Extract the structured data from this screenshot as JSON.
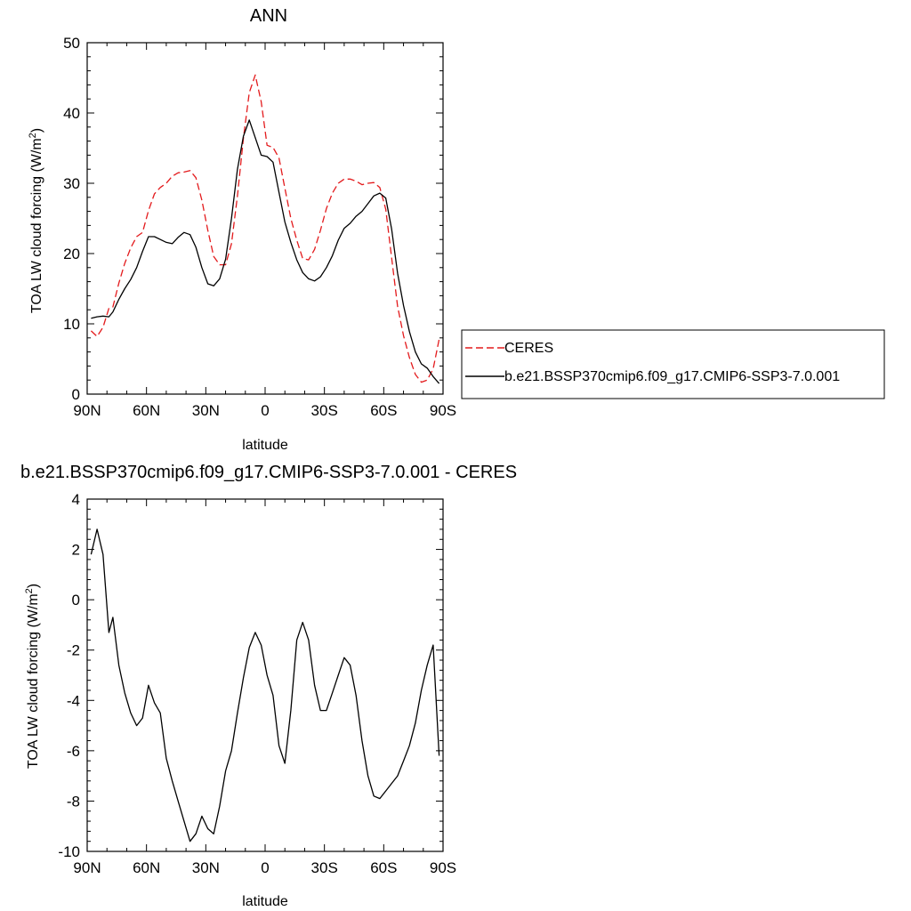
{
  "chart_data": [
    {
      "type": "line",
      "title": "ANN",
      "xlabel": "latitude",
      "ylabel": "TOA LW cloud forcing (W/m²)",
      "ylabel_main": "TOA LW cloud forcing (W/m",
      "ylabel_sup": "2",
      "ylabel_end": ")",
      "xlim": [
        90,
        -90
      ],
      "ylim": [
        0,
        50
      ],
      "grid": false,
      "legend_position": "right",
      "x_ticks": [
        {
          "value": 90,
          "label": "90N"
        },
        {
          "value": 60,
          "label": "60N"
        },
        {
          "value": 30,
          "label": "30N"
        },
        {
          "value": 0,
          "label": "0"
        },
        {
          "value": -30,
          "label": "30S"
        },
        {
          "value": -60,
          "label": "60S"
        },
        {
          "value": -90,
          "label": "90S"
        }
      ],
      "y_ticks": [
        {
          "value": 0,
          "label": "0"
        },
        {
          "value": 10,
          "label": "10"
        },
        {
          "value": 20,
          "label": "20"
        },
        {
          "value": 30,
          "label": "30"
        },
        {
          "value": 40,
          "label": "40"
        },
        {
          "value": 50,
          "label": "50"
        }
      ],
      "x": [
        88,
        85,
        82,
        79,
        77,
        74,
        71,
        68,
        65,
        62,
        59,
        56,
        53,
        50,
        47,
        44,
        41,
        38,
        35,
        32,
        29,
        26,
        23,
        20,
        17,
        14,
        11,
        8,
        5,
        2,
        -1,
        -4,
        -7,
        -10,
        -13,
        -16,
        -19,
        -22,
        -25,
        -28,
        -31,
        -34,
        -37,
        -40,
        -43,
        -46,
        -49,
        -52,
        -55,
        -58,
        -61,
        -64,
        -67,
        -70,
        -73,
        -76,
        -79,
        -82,
        -85,
        -88
      ],
      "series": [
        {
          "name": "CERES",
          "color": "#e31a1c",
          "dash": "dashed",
          "values": [
            9.0,
            8.2,
            9.5,
            12.2,
            12.4,
            15.8,
            18.6,
            20.8,
            22.4,
            23.0,
            26.1,
            28.5,
            29.4,
            30.0,
            31.0,
            31.5,
            31.6,
            31.8,
            30.8,
            27.6,
            23.3,
            19.6,
            18.4,
            18.4,
            21.4,
            28.2,
            36.4,
            42.9,
            45.4,
            41.6,
            35.4,
            35.1,
            33.6,
            29.3,
            25.0,
            21.9,
            19.3,
            19.1,
            20.6,
            23.3,
            26.4,
            28.6,
            30.0,
            30.6,
            30.6,
            30.3,
            29.8,
            30.0,
            30.1,
            29.4,
            26.3,
            19.4,
            12.5,
            8.3,
            5.2,
            2.8,
            1.7,
            2.0,
            3.6,
            7.8
          ]
        },
        {
          "name": "b.e21.BSSP370cmip6.f09_g17.CMIP6-SSP3-7.0.001",
          "color": "#000000",
          "dash": "solid",
          "values": [
            10.8,
            11.0,
            11.1,
            11.0,
            11.7,
            13.5,
            15.0,
            16.3,
            18.0,
            20.3,
            22.4,
            22.4,
            22.0,
            21.6,
            21.4,
            22.3,
            23.0,
            22.7,
            20.9,
            18.0,
            15.7,
            15.4,
            16.4,
            19.2,
            25.0,
            32.0,
            36.7,
            39.0,
            36.5,
            34.0,
            33.8,
            33.0,
            28.7,
            24.5,
            21.6,
            19.1,
            17.3,
            16.4,
            16.1,
            16.7,
            18.0,
            19.7,
            21.9,
            23.6,
            24.3,
            25.3,
            26.0,
            27.1,
            28.2,
            28.6,
            27.9,
            23.5,
            17.2,
            12.6,
            8.9,
            6.0,
            4.3,
            3.7,
            2.5,
            1.5
          ]
        }
      ]
    },
    {
      "type": "line",
      "title": "b.e21.BSSP370cmip6.f09_g17.CMIP6-SSP3-7.0.001 - CERES",
      "xlabel": "latitude",
      "ylabel": "TOA LW cloud forcing (W/m²)",
      "ylabel_main": "TOA LW cloud forcing (W/m",
      "ylabel_sup": "2",
      "ylabel_end": ")",
      "xlim": [
        90,
        -90
      ],
      "ylim": [
        -10,
        4
      ],
      "grid": false,
      "x_ticks": [
        {
          "value": 90,
          "label": "90N"
        },
        {
          "value": 60,
          "label": "60N"
        },
        {
          "value": 30,
          "label": "30N"
        },
        {
          "value": 0,
          "label": "0"
        },
        {
          "value": -30,
          "label": "30S"
        },
        {
          "value": -60,
          "label": "60S"
        },
        {
          "value": -90,
          "label": "90S"
        }
      ],
      "y_ticks": [
        {
          "value": 4,
          "label": "4"
        },
        {
          "value": 2,
          "label": "2"
        },
        {
          "value": 0,
          "label": "0"
        },
        {
          "value": -2,
          "label": "-2"
        },
        {
          "value": -4,
          "label": "-4"
        },
        {
          "value": -6,
          "label": "-6"
        },
        {
          "value": -8,
          "label": "-8"
        },
        {
          "value": -10,
          "label": "-10"
        }
      ],
      "x": [
        88,
        85,
        82,
        79,
        77,
        74,
        71,
        68,
        65,
        62,
        59,
        56,
        53,
        50,
        47,
        44,
        41,
        38,
        35,
        32,
        29,
        26,
        23,
        20,
        17,
        14,
        11,
        8,
        5,
        2,
        -1,
        -4,
        -7,
        -10,
        -13,
        -16,
        -19,
        -22,
        -25,
        -28,
        -31,
        -34,
        -37,
        -40,
        -43,
        -46,
        -49,
        -52,
        -55,
        -58,
        -61,
        -64,
        -67,
        -70,
        -73,
        -76,
        -79,
        -82,
        -85,
        -88
      ],
      "series": [
        {
          "name": "",
          "color": "#000000",
          "dash": "solid",
          "values": [
            1.8,
            2.8,
            1.8,
            -1.3,
            -0.7,
            -2.6,
            -3.7,
            -4.5,
            -5.0,
            -4.7,
            -3.4,
            -4.1,
            -4.5,
            -6.3,
            -7.2,
            -8.0,
            -8.8,
            -9.6,
            -9.3,
            -8.6,
            -9.1,
            -9.3,
            -8.2,
            -6.8,
            -6.0,
            -4.5,
            -3.1,
            -1.9,
            -1.3,
            -1.8,
            -3.0,
            -3.8,
            -5.8,
            -6.5,
            -4.4,
            -1.6,
            -0.9,
            -1.6,
            -3.4,
            -4.4,
            -4.4,
            -3.7,
            -3.0,
            -2.3,
            -2.6,
            -3.8,
            -5.6,
            -7.0,
            -7.8,
            -7.9,
            -7.6,
            -7.3,
            -7.0,
            -6.4,
            -5.8,
            -4.9,
            -3.6,
            -2.6,
            -1.8,
            -6.2
          ]
        }
      ]
    }
  ]
}
